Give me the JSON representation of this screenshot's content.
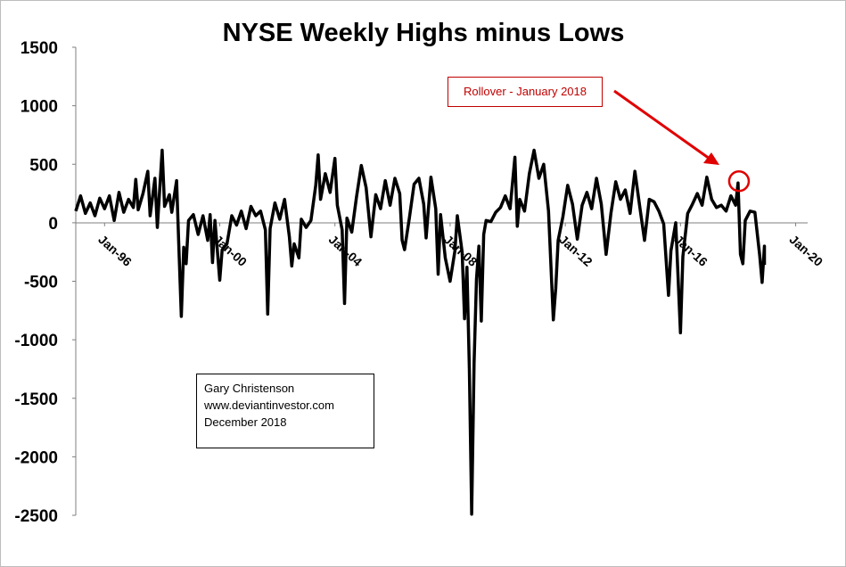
{
  "chart_data": {
    "type": "line",
    "title": "NYSE Weekly Highs minus Lows",
    "xlabel": "",
    "ylabel": "",
    "ylim": [
      -2500,
      1500
    ],
    "yticks": [
      1500,
      1000,
      500,
      0,
      -500,
      -1000,
      -1500,
      -2000,
      -2500
    ],
    "xlim": [
      "1995-01",
      "2020-06"
    ],
    "xticks": [
      {
        "label": "Jan-96",
        "date": "1996-01"
      },
      {
        "label": "Jan-00",
        "date": "2000-01"
      },
      {
        "label": "Jan-04",
        "date": "2004-01"
      },
      {
        "label": "Jan-08",
        "date": "2008-01"
      },
      {
        "label": "Jan-12",
        "date": "2012-01"
      },
      {
        "label": "Jan-16",
        "date": "2016-01"
      },
      {
        "label": "Jan-20",
        "date": "2020-01"
      }
    ],
    "grid": false,
    "legend": "none",
    "series": [
      {
        "color": "#000000",
        "points": [
          [
            "1995-01",
            100
          ],
          [
            "1995-03",
            230
          ],
          [
            "1995-05",
            80
          ],
          [
            "1995-07",
            170
          ],
          [
            "1995-09",
            60
          ],
          [
            "1995-11",
            210
          ],
          [
            "1996-01",
            120
          ],
          [
            "1996-03",
            230
          ],
          [
            "1996-05",
            20
          ],
          [
            "1996-07",
            260
          ],
          [
            "1996-09",
            90
          ],
          [
            "1996-11",
            200
          ],
          [
            "1997-01",
            130
          ],
          [
            "1997-02",
            370
          ],
          [
            "1997-03",
            110
          ],
          [
            "1997-05",
            250
          ],
          [
            "1997-07",
            440
          ],
          [
            "1997-08",
            60
          ],
          [
            "1997-10",
            380
          ],
          [
            "1997-11",
            -40
          ],
          [
            "1998-01",
            620
          ],
          [
            "1998-02",
            140
          ],
          [
            "1998-04",
            240
          ],
          [
            "1998-05",
            90
          ],
          [
            "1998-07",
            360
          ],
          [
            "1998-08",
            -220
          ],
          [
            "1998-09",
            -800
          ],
          [
            "1998-10",
            -210
          ],
          [
            "1998-11",
            -350
          ],
          [
            "1998-12",
            20
          ],
          [
            "1999-02",
            70
          ],
          [
            "1999-04",
            -100
          ],
          [
            "1999-06",
            60
          ],
          [
            "1999-08",
            -150
          ],
          [
            "1999-09",
            70
          ],
          [
            "1999-10",
            -340
          ],
          [
            "1999-11",
            20
          ],
          [
            "2000-01",
            -490
          ],
          [
            "2000-02",
            -230
          ],
          [
            "2000-04",
            -180
          ],
          [
            "2000-06",
            60
          ],
          [
            "2000-08",
            -20
          ],
          [
            "2000-10",
            100
          ],
          [
            "2000-12",
            -50
          ],
          [
            "2001-02",
            140
          ],
          [
            "2001-04",
            60
          ],
          [
            "2001-06",
            100
          ],
          [
            "2001-08",
            -60
          ],
          [
            "2001-09",
            -780
          ],
          [
            "2001-10",
            -50
          ],
          [
            "2001-12",
            170
          ],
          [
            "2002-02",
            30
          ],
          [
            "2002-04",
            200
          ],
          [
            "2002-06",
            -120
          ],
          [
            "2002-07",
            -370
          ],
          [
            "2002-08",
            -180
          ],
          [
            "2002-10",
            -300
          ],
          [
            "2002-11",
            30
          ],
          [
            "2003-01",
            -40
          ],
          [
            "2003-03",
            20
          ],
          [
            "2003-05",
            320
          ],
          [
            "2003-06",
            580
          ],
          [
            "2003-07",
            200
          ],
          [
            "2003-09",
            420
          ],
          [
            "2003-11",
            260
          ],
          [
            "2004-01",
            550
          ],
          [
            "2004-02",
            150
          ],
          [
            "2004-04",
            -60
          ],
          [
            "2004-05",
            -690
          ],
          [
            "2004-06",
            40
          ],
          [
            "2004-08",
            -80
          ],
          [
            "2004-10",
            220
          ],
          [
            "2004-12",
            490
          ],
          [
            "2005-02",
            300
          ],
          [
            "2005-04",
            -120
          ],
          [
            "2005-06",
            240
          ],
          [
            "2005-08",
            120
          ],
          [
            "2005-10",
            360
          ],
          [
            "2005-12",
            150
          ],
          [
            "2006-02",
            380
          ],
          [
            "2006-04",
            250
          ],
          [
            "2006-05",
            -150
          ],
          [
            "2006-06",
            -230
          ],
          [
            "2006-08",
            40
          ],
          [
            "2006-10",
            330
          ],
          [
            "2006-12",
            380
          ],
          [
            "2007-02",
            160
          ],
          [
            "2007-03",
            -130
          ],
          [
            "2007-05",
            390
          ],
          [
            "2007-07",
            120
          ],
          [
            "2007-08",
            -440
          ],
          [
            "2007-09",
            70
          ],
          [
            "2007-11",
            -300
          ],
          [
            "2008-01",
            -500
          ],
          [
            "2008-03",
            -240
          ],
          [
            "2008-04",
            60
          ],
          [
            "2008-06",
            -250
          ],
          [
            "2008-07",
            -820
          ],
          [
            "2008-08",
            -380
          ],
          [
            "2008-09",
            -1250
          ],
          [
            "2008-10",
            -2490
          ],
          [
            "2008-11",
            -1200
          ],
          [
            "2008-12",
            -480
          ],
          [
            "2009-01",
            -200
          ],
          [
            "2009-02",
            -840
          ],
          [
            "2009-03",
            -100
          ],
          [
            "2009-04",
            20
          ],
          [
            "2009-06",
            10
          ],
          [
            "2009-08",
            90
          ],
          [
            "2009-10",
            130
          ],
          [
            "2009-12",
            230
          ],
          [
            "2010-02",
            120
          ],
          [
            "2010-04",
            560
          ],
          [
            "2010-05",
            -30
          ],
          [
            "2010-06",
            200
          ],
          [
            "2010-08",
            100
          ],
          [
            "2010-10",
            420
          ],
          [
            "2010-12",
            620
          ],
          [
            "2011-02",
            380
          ],
          [
            "2011-04",
            500
          ],
          [
            "2011-06",
            100
          ],
          [
            "2011-08",
            -830
          ],
          [
            "2011-09",
            -560
          ],
          [
            "2011-10",
            -150
          ],
          [
            "2011-12",
            50
          ],
          [
            "2012-02",
            320
          ],
          [
            "2012-04",
            160
          ],
          [
            "2012-06",
            -140
          ],
          [
            "2012-08",
            150
          ],
          [
            "2012-10",
            260
          ],
          [
            "2012-12",
            120
          ],
          [
            "2013-02",
            380
          ],
          [
            "2013-04",
            160
          ],
          [
            "2013-06",
            -270
          ],
          [
            "2013-08",
            80
          ],
          [
            "2013-10",
            350
          ],
          [
            "2013-12",
            200
          ],
          [
            "2014-02",
            280
          ],
          [
            "2014-04",
            80
          ],
          [
            "2014-06",
            440
          ],
          [
            "2014-08",
            140
          ],
          [
            "2014-10",
            -150
          ],
          [
            "2014-12",
            200
          ],
          [
            "2015-02",
            180
          ],
          [
            "2015-04",
            100
          ],
          [
            "2015-06",
            -10
          ],
          [
            "2015-08",
            -620
          ],
          [
            "2015-09",
            -240
          ],
          [
            "2015-11",
            0
          ],
          [
            "2016-01",
            -940
          ],
          [
            "2016-02",
            -290
          ],
          [
            "2016-04",
            80
          ],
          [
            "2016-06",
            160
          ],
          [
            "2016-08",
            250
          ],
          [
            "2016-10",
            150
          ],
          [
            "2016-12",
            390
          ],
          [
            "2017-02",
            200
          ],
          [
            "2017-04",
            130
          ],
          [
            "2017-06",
            150
          ],
          [
            "2017-08",
            100
          ],
          [
            "2017-10",
            230
          ],
          [
            "2017-12",
            150
          ],
          [
            "2018-01",
            340
          ],
          [
            "2018-02",
            -270
          ],
          [
            "2018-03",
            -350
          ],
          [
            "2018-04",
            20
          ],
          [
            "2018-06",
            100
          ],
          [
            "2018-08",
            90
          ],
          [
            "2018-10",
            -280
          ],
          [
            "2018-11",
            -510
          ],
          [
            "2018-12",
            -200
          ],
          [
            "2018-12",
            -360
          ]
        ]
      }
    ],
    "annotations": [
      {
        "text": "Rollover - January 2018",
        "color": "#c00000",
        "points_to": [
          "2018-01",
          340
        ]
      }
    ]
  },
  "credit": {
    "author": "Gary Christenson",
    "website": "www.deviantinvestor.com",
    "date": "December 2018"
  }
}
